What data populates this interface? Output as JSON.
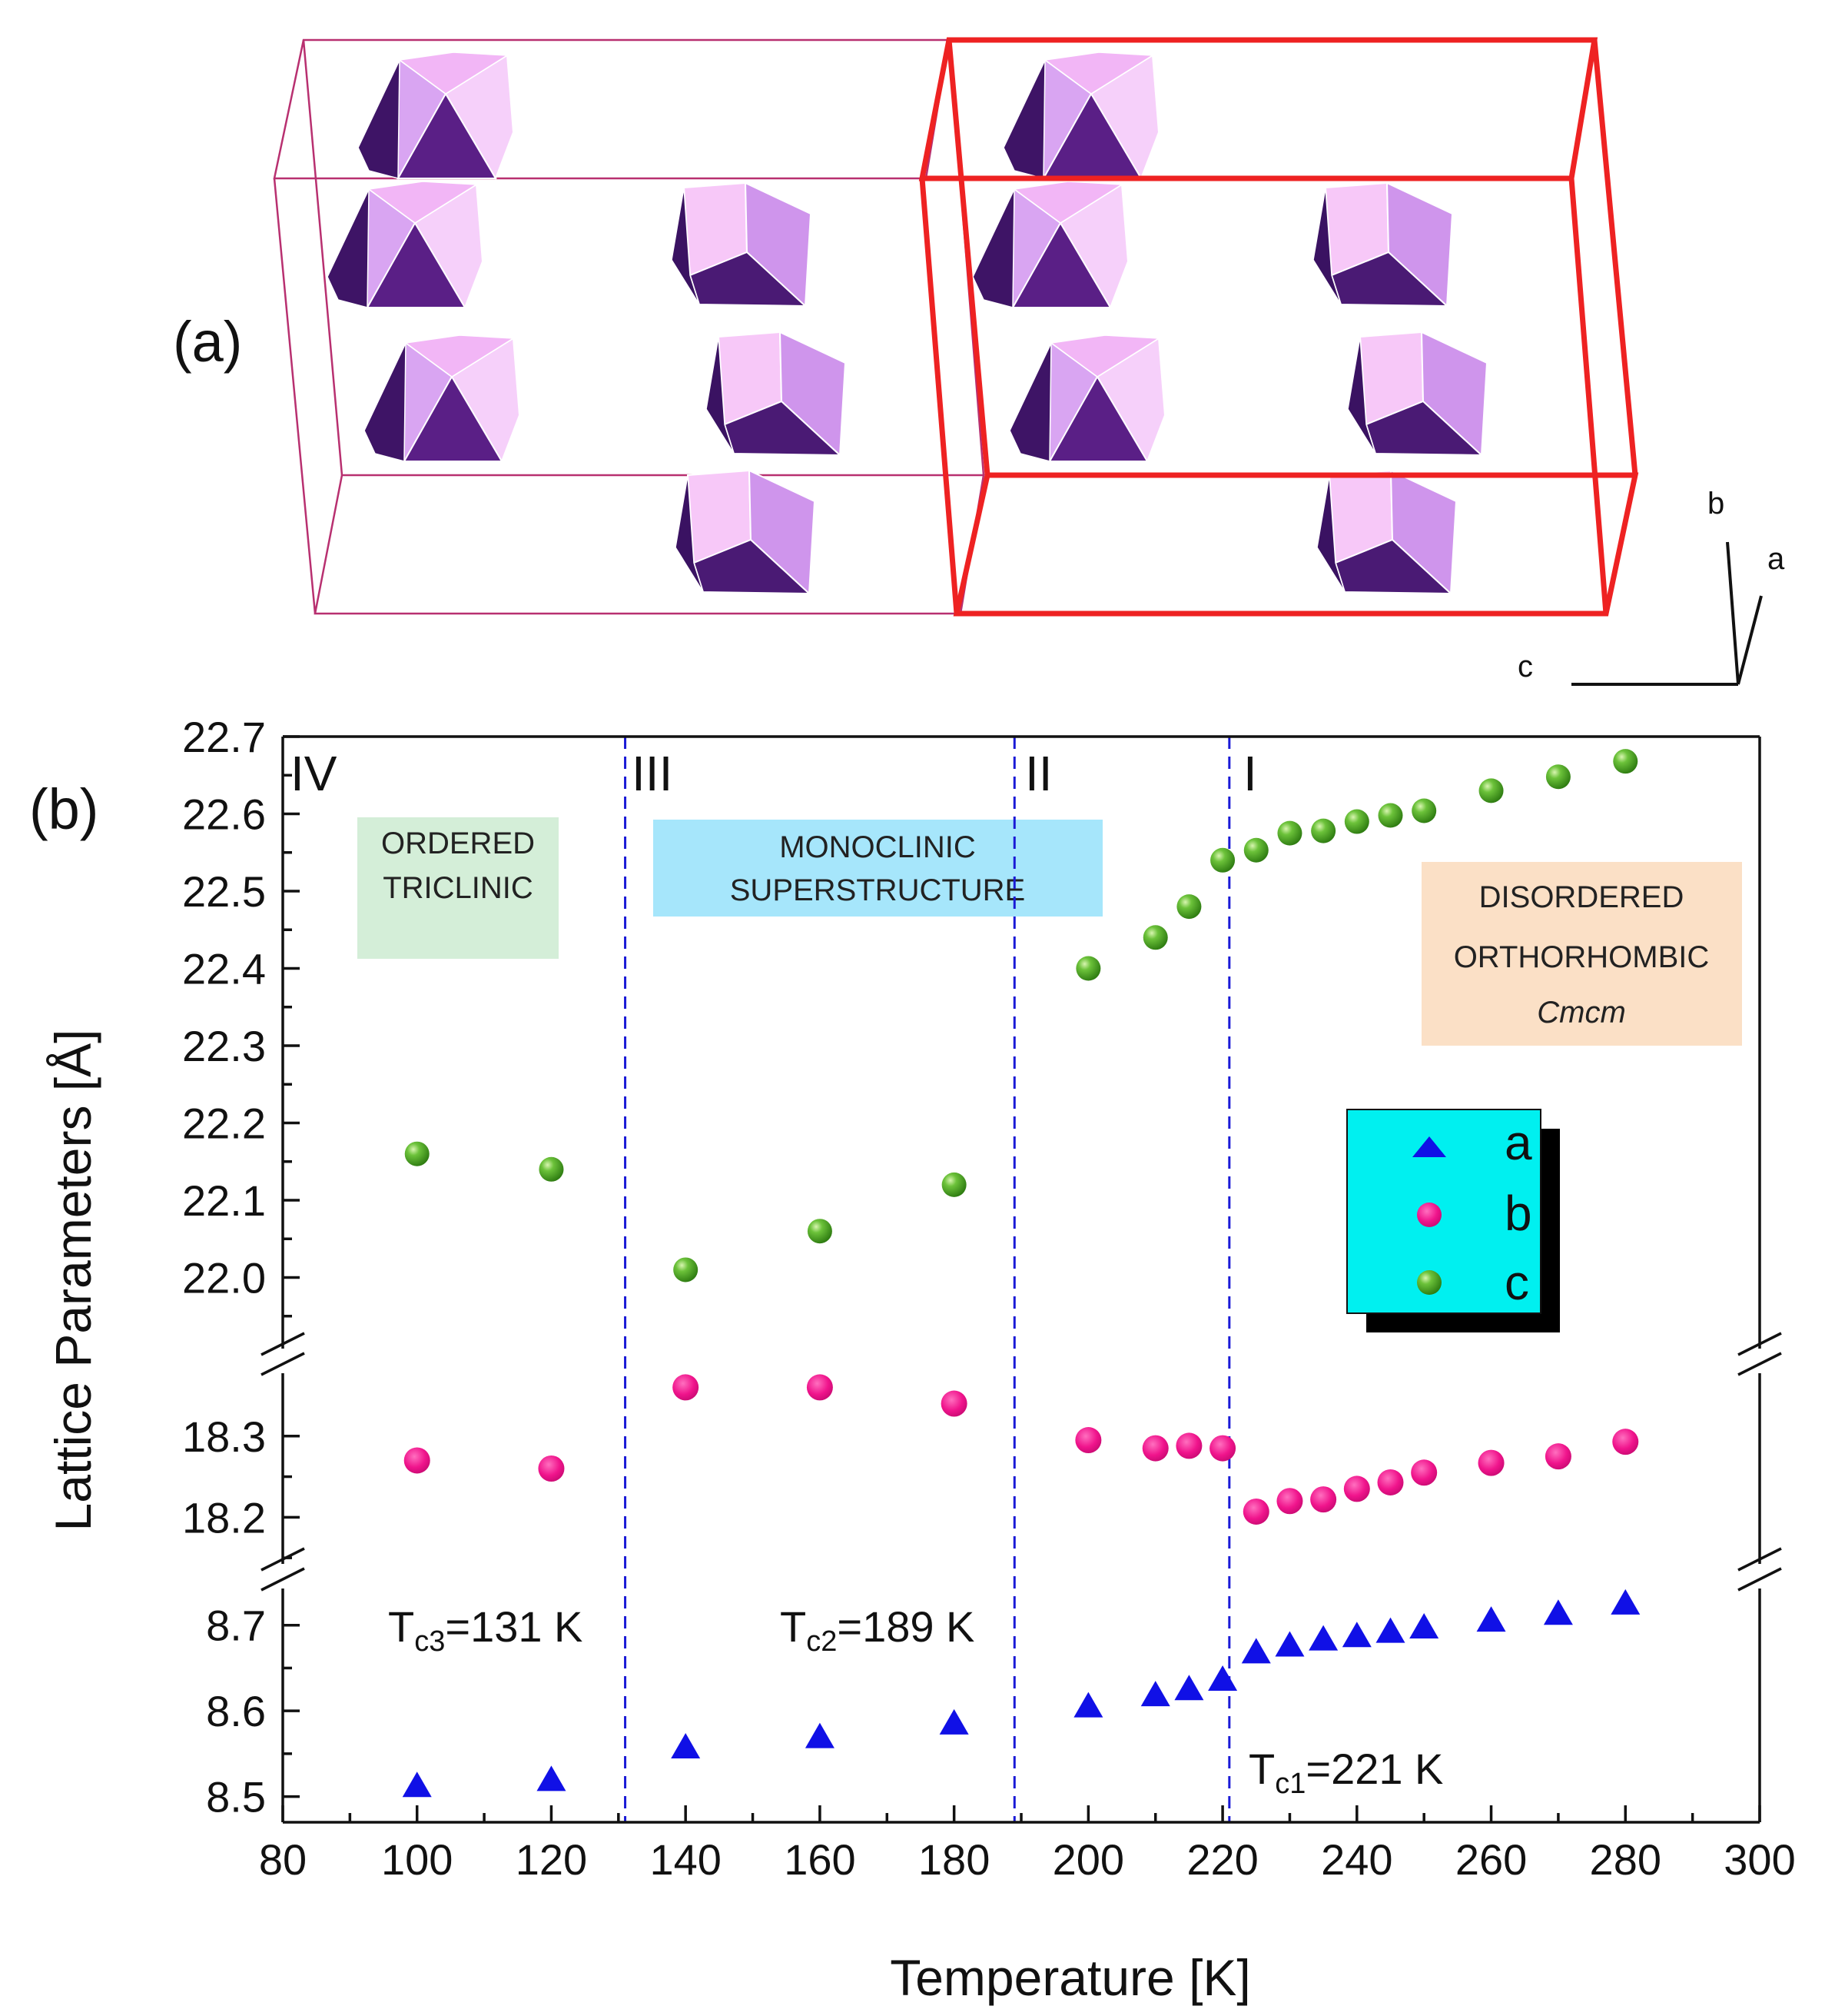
{
  "panel_a": {
    "label": "(a)",
    "axes_labels": [
      "b",
      "a",
      "c"
    ]
  },
  "panel_b": {
    "label": "(b)"
  },
  "colors": {
    "a": "#1010e6",
    "b": "#f0148c",
    "c": "#4aa41a",
    "dashed": "#1a1ad6",
    "cell_red": "#ee2222",
    "cell_thin": "#b83070",
    "green_box": "#d4eed8",
    "blue_box": "#a6e6fb",
    "orange_box": "#fbe0c6",
    "legend_bg": "#00f0f0"
  },
  "chart_data": {
    "type": "scatter",
    "xlabel": "Temperature [K]",
    "ylabel": "Lattice Parameters [Å]",
    "xlim": [
      80,
      300
    ],
    "x_ticks": [
      "80",
      "100",
      "120",
      "140",
      "160",
      "180",
      "200",
      "220",
      "240",
      "260",
      "280",
      "300"
    ],
    "segments": {
      "c": {
        "ylim": [
          21.9,
          22.7
        ],
        "ticks": [
          "22.0",
          "22.1",
          "22.2",
          "22.3",
          "22.4",
          "22.5",
          "22.6",
          "22.7"
        ]
      },
      "b": {
        "ylim": [
          18.135,
          18.385
        ],
        "ticks": [
          "18.2",
          "18.3"
        ]
      },
      "a": {
        "ylim": [
          8.47,
          8.75
        ],
        "ticks": [
          "8.5",
          "8.6",
          "8.7"
        ]
      }
    },
    "series": [
      {
        "name": "a",
        "x": [
          100,
          120,
          140,
          160,
          180,
          200,
          210,
          215,
          220,
          225,
          230,
          235,
          240,
          245,
          250,
          260,
          270,
          280
        ],
        "values": [
          8.512,
          8.519,
          8.557,
          8.569,
          8.585,
          8.605,
          8.618,
          8.625,
          8.636,
          8.668,
          8.676,
          8.683,
          8.687,
          8.692,
          8.697,
          8.705,
          8.713,
          8.725
        ]
      },
      {
        "name": "b",
        "x": [
          100,
          120,
          140,
          160,
          180,
          200,
          210,
          215,
          220,
          225,
          230,
          235,
          240,
          245,
          250,
          260,
          270,
          280
        ],
        "values": [
          18.27,
          18.26,
          18.36,
          18.36,
          18.34,
          18.295,
          18.285,
          18.288,
          18.285,
          18.207,
          18.22,
          18.222,
          18.235,
          18.243,
          18.255,
          18.267,
          18.275,
          18.293
        ]
      },
      {
        "name": "c",
        "x": [
          100,
          120,
          140,
          160,
          180,
          200,
          210,
          215,
          220,
          225,
          230,
          235,
          240,
          245,
          250,
          260,
          270,
          280
        ],
        "values": [
          22.16,
          22.14,
          22.01,
          22.06,
          22.12,
          22.4,
          22.44,
          22.48,
          22.54,
          22.553,
          22.575,
          22.578,
          22.59,
          22.598,
          22.604,
          22.63,
          22.648,
          22.668
        ]
      }
    ],
    "transitions": [
      {
        "x": 131,
        "label": "T",
        "sub": "c3",
        "text": "=131 K"
      },
      {
        "x": 189,
        "label": "T",
        "sub": "c2",
        "text": "=189 K"
      },
      {
        "x": 221,
        "label": "T",
        "sub": "c1",
        "text": "=221 K"
      }
    ],
    "phase_numerals": [
      "IV",
      "III",
      "II",
      "I"
    ],
    "phase_boxes": [
      {
        "lines": [
          "ORDERED",
          "TRICLINIC"
        ]
      },
      {
        "lines": [
          "MONOCLINIC",
          "SUPERSTRUCTURE"
        ]
      },
      {
        "lines": [
          "DISORDERED",
          "ORTHORHOMBIC",
          "Cmcm"
        ]
      }
    ],
    "legend": [
      "a",
      "b",
      "c"
    ]
  }
}
